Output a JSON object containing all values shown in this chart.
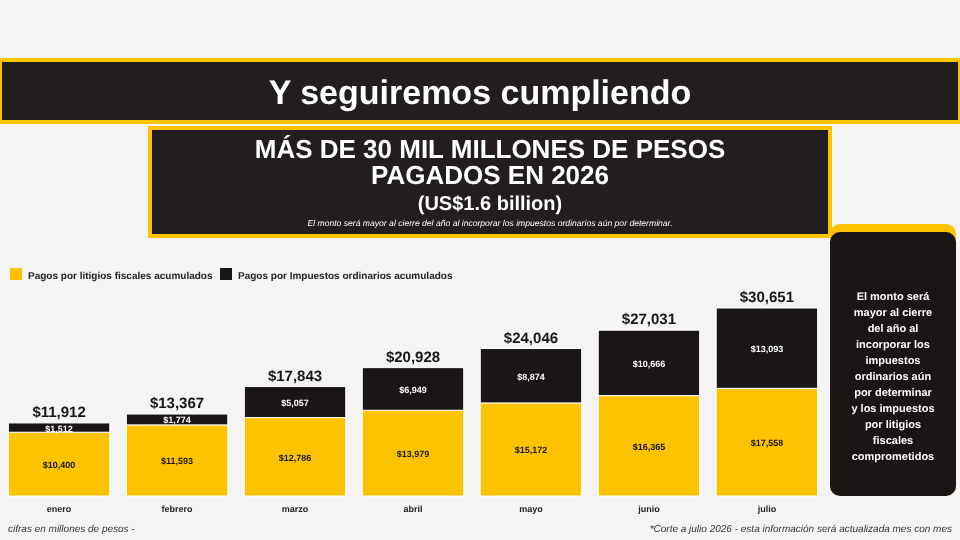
{
  "chart_data": {
    "type": "bar",
    "stacked": true,
    "title": "Y seguiremos cumpliendo",
    "subtitle": "MÁS DE 30 MIL MILLONES DE PESOS\nPAGADOS EN 2026\n(US$1.6 billion)",
    "categories": [
      "enero",
      "febrero",
      "marzo",
      "abril",
      "mayo",
      "junio",
      "julio"
    ],
    "series": [
      {
        "name": "Pagos por litigios fiscales acumulados",
        "color": "#fdc300",
        "values": [
          10400,
          11593,
          12786,
          13979,
          15172,
          16365,
          17558
        ],
        "value_labels": [
          "$10,400",
          "$11,593",
          "$12,786",
          "$13,979",
          "$15,172",
          "$16,365",
          "$17,558"
        ]
      },
      {
        "name": "Pagos por Impuestos ordinarios acumulados",
        "color": "#1a1616",
        "values": [
          1512,
          1774,
          5057,
          6949,
          8874,
          10666,
          13093
        ],
        "value_labels": [
          "$1,512",
          "$1,774",
          "$5,057",
          "$6,949",
          "$8,874",
          "$10,666",
          "$13,093"
        ]
      }
    ],
    "totals": [
      "$11,912",
      "$13,367",
      "$17,843",
      "$20,928",
      "$24,046",
      "$27,031",
      "$30,651"
    ],
    "tick_labels": "x",
    "legend": "top left",
    "annotations": [
      "El monto será mayor al cierre del año al incorporar los impuestos ordinarios aún por determinar.",
      "El monto será mayor al cierre del año al incorporar los impuestos ordinarios aún por determinar y los impuestos por litigios fiscales comprometidos",
      "cifras en millones de pesos -",
      "*Corte a julio 2026 - esta información será actualizada mes con mes"
    ]
  }
}
